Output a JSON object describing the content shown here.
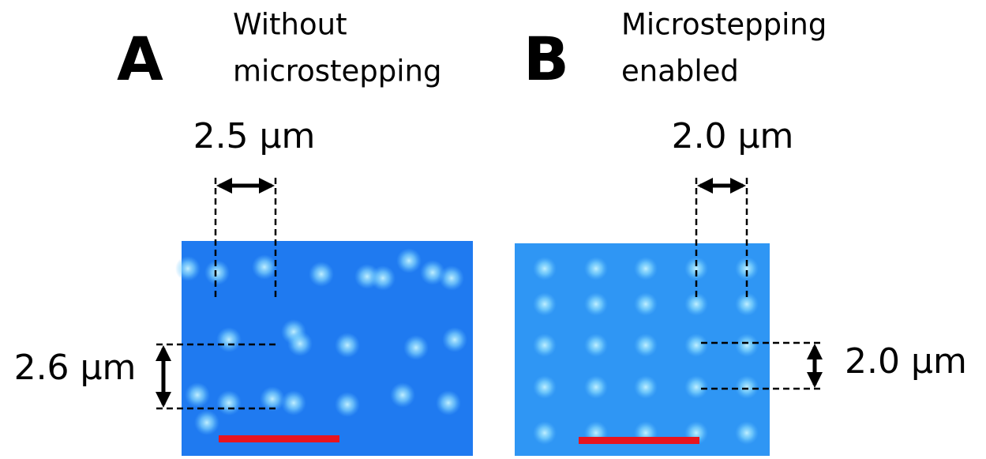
{
  "panels": [
    {
      "label": "A",
      "caption": [
        "Without",
        "microstepping"
      ],
      "horizontal_spacing": "2.5 μm",
      "vertical_spacing": "2.6 μm"
    },
    {
      "label": "B",
      "caption": [
        "Microstepping",
        "enabled"
      ],
      "horizontal_spacing": "2.0 μm",
      "vertical_spacing": "2.0 μm"
    }
  ]
}
